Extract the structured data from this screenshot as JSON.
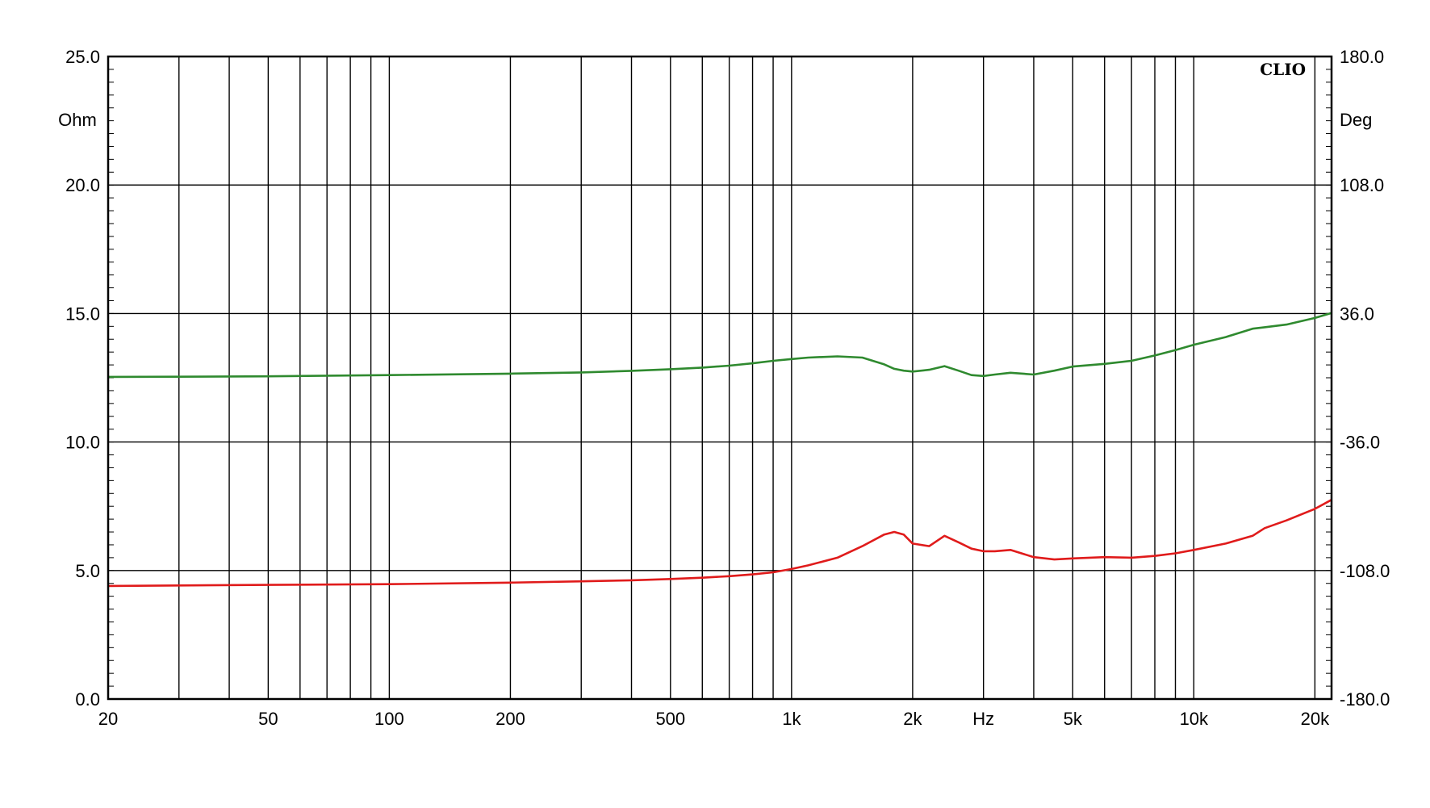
{
  "chart_data": {
    "type": "line",
    "brand": "CLIO",
    "xlabel": "Hz",
    "ylabel_left": "Ohm",
    "ylabel_right": "Deg",
    "x_scale": "log",
    "xlim": [
      20,
      22000
    ],
    "ylim_left": [
      0,
      25
    ],
    "ylim_right": [
      -180,
      180
    ],
    "grid": true,
    "x_ticks": [
      {
        "value": 20,
        "label": "20"
      },
      {
        "value": 50,
        "label": "50"
      },
      {
        "value": 100,
        "label": "100"
      },
      {
        "value": 200,
        "label": "200"
      },
      {
        "value": 500,
        "label": "500"
      },
      {
        "value": 1000,
        "label": "1k"
      },
      {
        "value": 2000,
        "label": "2k"
      },
      {
        "value": 5000,
        "label": "5k"
      },
      {
        "value": 10000,
        "label": "10k"
      },
      {
        "value": 20000,
        "label": "20k"
      }
    ],
    "y_ticks_left": [
      "0.0",
      "5.0",
      "10.0",
      "15.0",
      "20.0",
      "25.0"
    ],
    "y_ticks_right": [
      "-180.0",
      "-108.0",
      "-36.0",
      "36.0",
      "108.0",
      "180.0"
    ],
    "series": [
      {
        "axis": "left",
        "color": "#e01b1b",
        "x": [
          20,
          30,
          50,
          100,
          200,
          300,
          400,
          500,
          600,
          700,
          800,
          900,
          1000,
          1100,
          1300,
          1500,
          1700,
          1800,
          1900,
          2000,
          2200,
          2400,
          2600,
          2800,
          3000,
          3200,
          3500,
          4000,
          4500,
          5000,
          6000,
          7000,
          8000,
          9000,
          10000,
          12000,
          14000,
          15000,
          17000,
          20000,
          22000
        ],
        "values": [
          4.4,
          4.42,
          4.44,
          4.47,
          4.53,
          4.58,
          4.62,
          4.67,
          4.72,
          4.78,
          4.85,
          4.93,
          5.06,
          5.2,
          5.5,
          5.95,
          6.4,
          6.5,
          6.4,
          6.05,
          5.95,
          6.35,
          6.1,
          5.85,
          5.75,
          5.75,
          5.8,
          5.52,
          5.43,
          5.47,
          5.52,
          5.5,
          5.57,
          5.67,
          5.8,
          6.05,
          6.35,
          6.65,
          6.95,
          7.4,
          7.75
        ]
      },
      {
        "axis": "right",
        "color": "#2f8a2f",
        "x": [
          20,
          30,
          50,
          100,
          200,
          300,
          400,
          500,
          600,
          700,
          800,
          900,
          1000,
          1100,
          1300,
          1500,
          1700,
          1800,
          1900,
          2000,
          2200,
          2400,
          2600,
          2800,
          3000,
          3200,
          3500,
          4000,
          4500,
          5000,
          6000,
          7000,
          8000,
          9000,
          10000,
          12000,
          14000,
          15000,
          17000,
          20000,
          22000
        ],
        "values": [
          0.5,
          0.6,
          0.8,
          1.5,
          2.3,
          3.0,
          3.9,
          4.8,
          5.7,
          6.8,
          8.1,
          9.5,
          10.5,
          11.3,
          12.0,
          11.3,
          7.5,
          5.0,
          4.0,
          3.5,
          4.5,
          6.5,
          4.0,
          1.5,
          1.0,
          1.8,
          2.8,
          1.8,
          4.0,
          6.3,
          7.8,
          9.5,
          12.5,
          15.5,
          18.5,
          22.8,
          27.5,
          28.3,
          29.8,
          33.5,
          36.3
        ]
      }
    ]
  }
}
